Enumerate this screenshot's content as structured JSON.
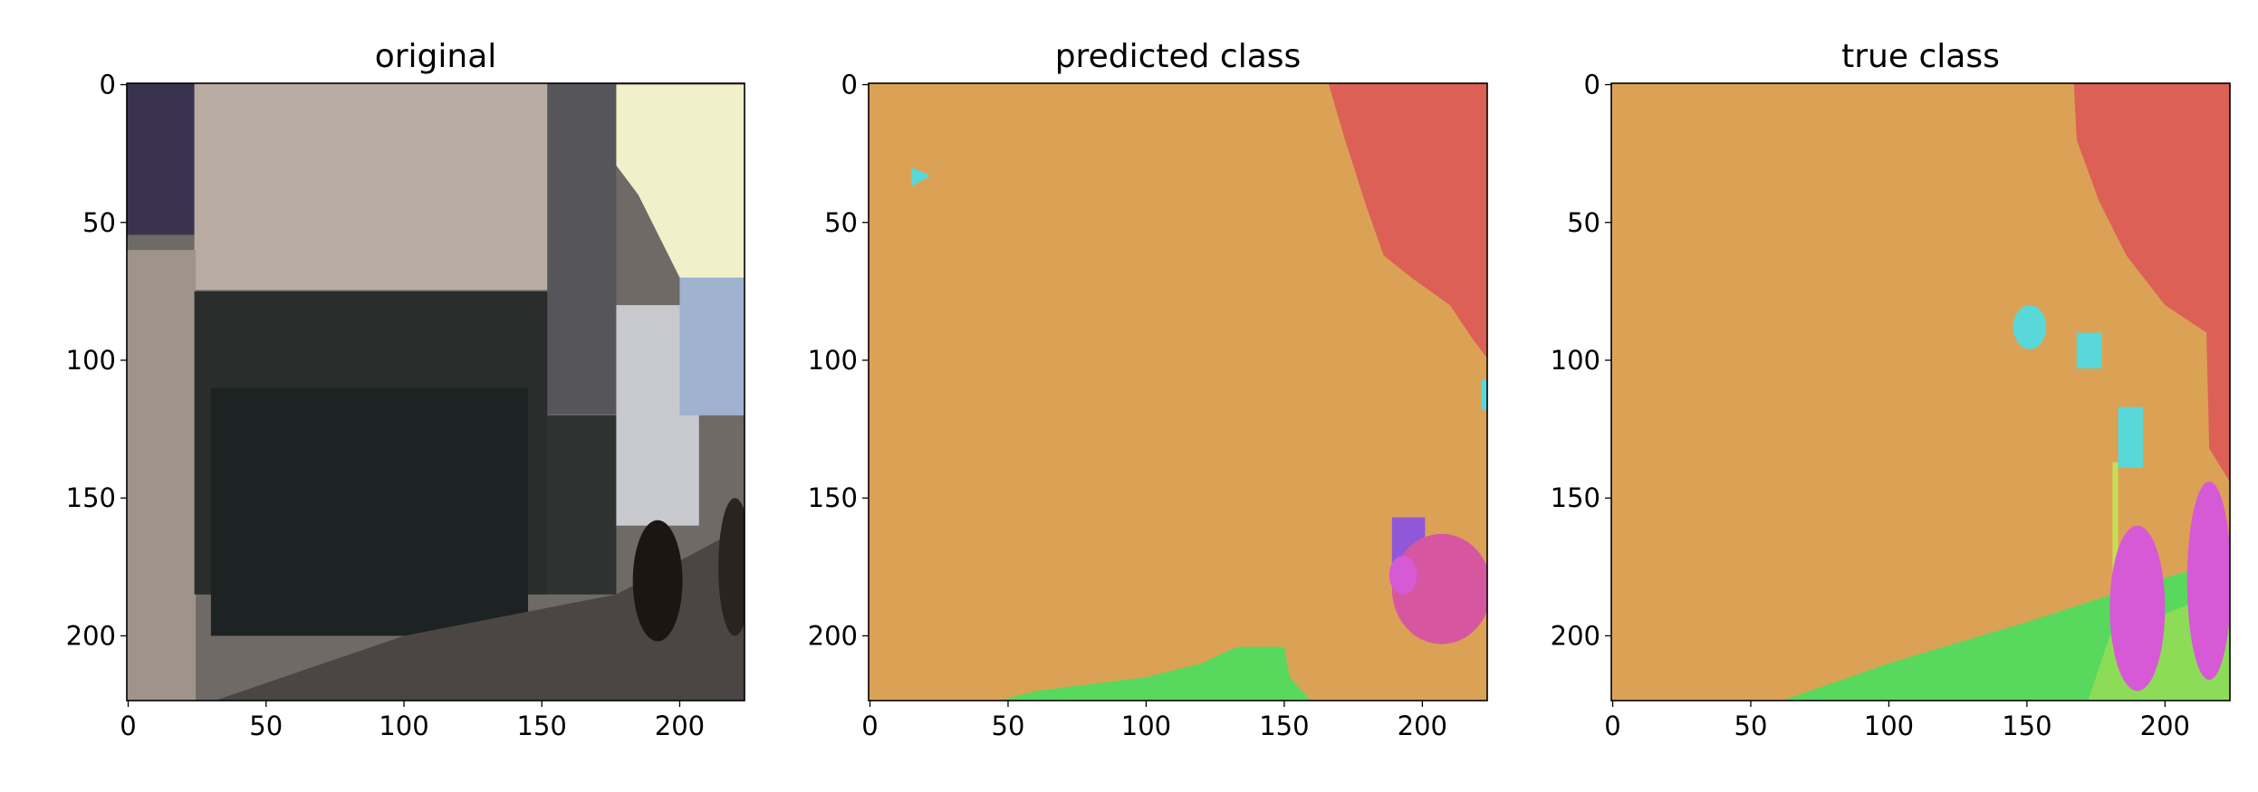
{
  "chart_data": [
    {
      "type": "image",
      "title": "original",
      "xlim": [
        -0.5,
        223.5
      ],
      "ylim": [
        223.5,
        -0.5
      ],
      "xticks": [
        0,
        50,
        100,
        150,
        200
      ],
      "yticks": [
        0,
        50,
        100,
        150,
        200
      ]
    },
    {
      "type": "image",
      "title": "predicted class",
      "xlim": [
        -0.5,
        223.5
      ],
      "ylim": [
        223.5,
        -0.5
      ],
      "xticks": [
        0,
        50,
        100,
        150,
        200
      ],
      "yticks": [
        0,
        50,
        100,
        150,
        200
      ]
    },
    {
      "type": "image",
      "title": "true class",
      "xlim": [
        -0.5,
        223.5
      ],
      "ylim": [
        223.5,
        -0.5
      ],
      "xticks": [
        0,
        50,
        100,
        150,
        200
      ],
      "yticks": [
        0,
        50,
        100,
        150,
        200
      ]
    }
  ]
}
